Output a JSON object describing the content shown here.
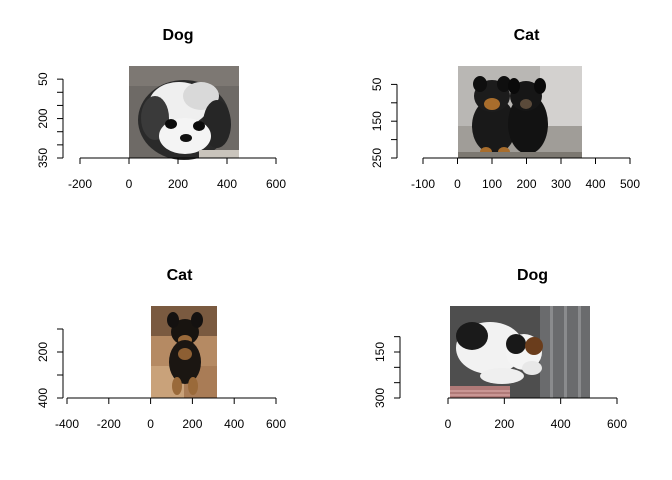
{
  "chart_data": [
    {
      "type": "image",
      "title": "Dog",
      "x_ticks": [
        -200,
        0,
        200,
        400,
        600
      ],
      "xlim": [
        -200,
        600
      ],
      "y_ticks": [
        50,
        200,
        350
      ],
      "y_minor_ticks": [
        100,
        150,
        250,
        300
      ],
      "ylim": [
        350,
        0
      ],
      "image_extent": {
        "x": [
          0,
          450
        ],
        "y": [
          0,
          380
        ]
      },
      "image": {
        "description": "black-and-white shih tzu",
        "icon": "shih-tzu-photo"
      }
    },
    {
      "type": "image",
      "title": "Cat",
      "x_ticks": [
        -100,
        0,
        100,
        200,
        300,
        400,
        500
      ],
      "xlim": [
        -100,
        500
      ],
      "y_ticks": [
        50,
        150,
        250
      ],
      "y_minor_ticks": [
        100,
        200
      ],
      "ylim": [
        250,
        0
      ],
      "image_extent": {
        "x": [
          0,
          360
        ],
        "y": [
          0,
          265
        ]
      },
      "image": {
        "description": "two black and tan puppies",
        "icon": "two-puppies-photo"
      }
    },
    {
      "type": "image",
      "title": "Cat",
      "x_ticks": [
        -400,
        -200,
        0,
        200,
        400,
        600
      ],
      "xlim": [
        -400,
        600
      ],
      "y_ticks": [
        200,
        400
      ],
      "y_minor_ticks": [
        100,
        300
      ],
      "ylim": [
        400,
        0
      ],
      "image_extent": {
        "x": [
          0,
          320
        ],
        "y": [
          -100,
          450
        ]
      },
      "image": {
        "description": "black and tan dog sitting on tiles",
        "icon": "sitting-dog-photo"
      }
    },
    {
      "type": "image",
      "title": "Dog",
      "x_ticks": [
        0,
        200,
        400,
        600
      ],
      "xlim": [
        0,
        600
      ],
      "y_ticks": [
        150,
        300
      ],
      "y_minor_ticks": [
        100,
        200,
        250
      ],
      "ylim": [
        300,
        0
      ],
      "image_extent": {
        "x": [
          0,
          500
        ],
        "y": [
          0,
          315
        ]
      },
      "image": {
        "description": "white black and brown terrier in kennel",
        "icon": "terrier-photo"
      }
    }
  ]
}
